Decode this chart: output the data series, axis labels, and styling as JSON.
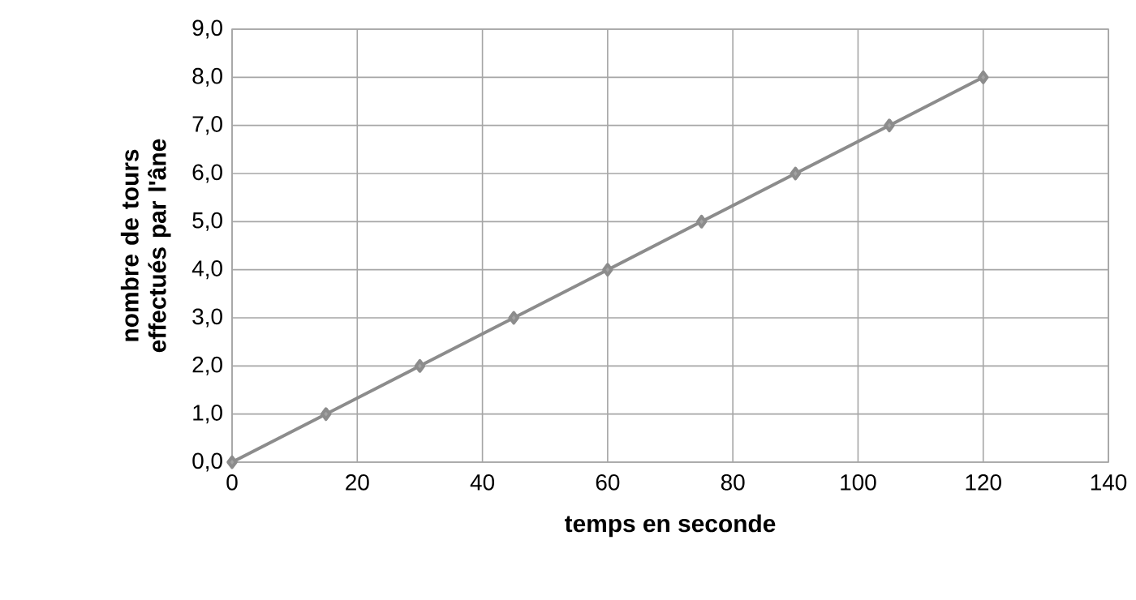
{
  "chart_data": {
    "type": "line",
    "xlabel": "temps en seconde",
    "ylabel": "nombre de tours effectués par l'âne",
    "x": [
      0,
      15,
      30,
      45,
      60,
      75,
      90,
      105,
      120
    ],
    "series": [
      {
        "color": "#8c8c8c",
        "values": [
          0,
          1,
          2,
          3,
          4,
          5,
          6,
          7,
          8
        ]
      }
    ],
    "xlim": [
      0,
      140
    ],
    "xticks": [
      0,
      20,
      40,
      60,
      80,
      100,
      120,
      140
    ],
    "ylim": [
      0,
      9
    ],
    "yticks": [
      {
        "value": 0,
        "label": "0,0"
      },
      {
        "value": 1,
        "label": "1,0"
      },
      {
        "value": 2,
        "label": "2,0"
      },
      {
        "value": 3,
        "label": "3,0"
      },
      {
        "value": 4,
        "label": "4,0"
      },
      {
        "value": 5,
        "label": "5,0"
      },
      {
        "value": 6,
        "label": "6,0"
      },
      {
        "value": 7,
        "label": "7,0"
      },
      {
        "value": 8,
        "label": "8,0"
      },
      {
        "value": 9,
        "label": "9,0"
      }
    ],
    "grid": true,
    "marker": "diamond",
    "line_style": "solid"
  }
}
